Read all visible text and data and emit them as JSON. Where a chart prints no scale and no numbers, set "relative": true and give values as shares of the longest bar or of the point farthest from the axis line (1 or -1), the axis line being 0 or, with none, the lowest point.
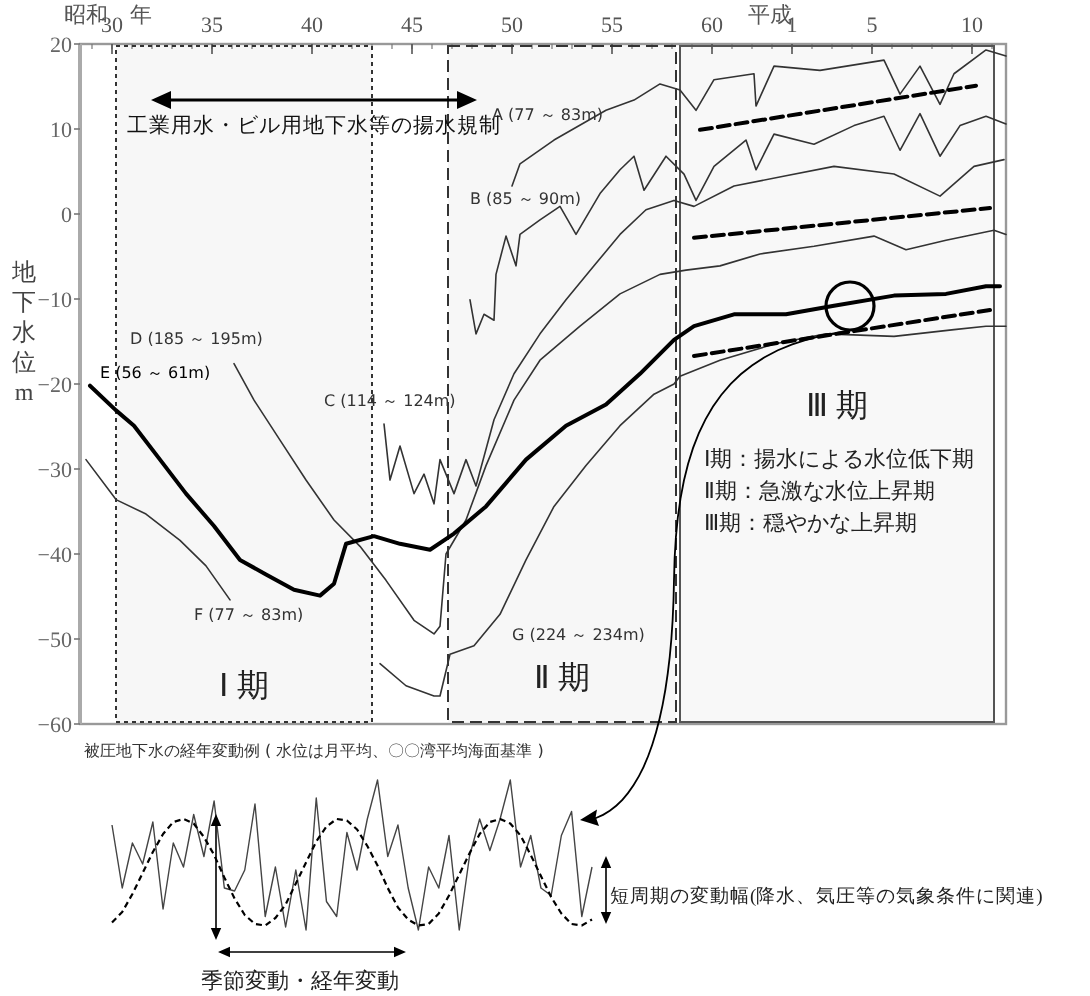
{
  "chart_data": [
    {
      "type": "line",
      "xlabel": "昭和　年",
      "x2label": "平成",
      "ylabel": "地下水位 m",
      "xlim": [
        28.4,
        74.7
      ],
      "xticks": [
        30,
        35,
        40,
        45,
        50,
        55,
        60
      ],
      "x2lim": [
        -34.6,
        11.7
      ],
      "x2ticks": [
        1,
        5,
        10
      ],
      "ylim": [
        -60,
        20
      ],
      "yticks": [
        -60,
        -50,
        -40,
        -30,
        -20,
        -10,
        0,
        10,
        20
      ],
      "series": [
        {
          "name": "A (77 ～ 83m)",
          "color": "#333333",
          "x": [
            50.0,
            50.4,
            52.1,
            54.7,
            56.1,
            57.4,
            58.4,
            59.2,
            60.1,
            62.1,
            62.2,
            63.1,
            65.4,
            68.6,
            69.4,
            70.4,
            71.4,
            72.1,
            73.7,
            74.7
          ],
          "values": [
            3.3,
            5.9,
            8.7,
            12.2,
            13.4,
            15.3,
            14.6,
            12.2,
            15.8,
            16.5,
            12.7,
            17.4,
            16.9,
            18.1,
            14.1,
            17.4,
            12.9,
            16.5,
            19.3,
            18.6
          ]
        },
        {
          "name": "B (85 ～ 90m)",
          "color": "#333333",
          "x": [
            47.9,
            48.2,
            48.6,
            49.1,
            49.2,
            49.7,
            50.2,
            50.4,
            51.4,
            52.4,
            53.2,
            54.4,
            55.4,
            56.1,
            56.6,
            57.7,
            58.6,
            59.2,
            60.1,
            61.7,
            62.2,
            63.1,
            65.1,
            67.1,
            68.6,
            69.4,
            70.4,
            71.4,
            72.4,
            73.7,
            74.7
          ],
          "values": [
            -10.1,
            -14.1,
            -11.8,
            -12.5,
            -7.1,
            -2.6,
            -6.1,
            -2.4,
            -0.7,
            0.9,
            -2.4,
            2.4,
            5.2,
            6.8,
            2.8,
            6.8,
            4.7,
            1.6,
            5.6,
            8.7,
            5.2,
            9.4,
            8.2,
            10.4,
            11.5,
            7.5,
            11.8,
            6.8,
            10.4,
            11.5,
            10.6
          ]
        },
        {
          "name": "C (114 ～ 124m)",
          "color": "#333333",
          "x": [
            43.6,
            43.9,
            44.4,
            45.1,
            45.6,
            46.1,
            46.4,
            47.1,
            47.7,
            48.2,
            49.1,
            50.1,
            51.4,
            52.7,
            54.1,
            55.4,
            56.7,
            58.1,
            59.1,
            61.1,
            63.7,
            66.1,
            69.1,
            71.4,
            73.1,
            74.6
          ],
          "values": [
            -24.7,
            -31.3,
            -27.3,
            -32.9,
            -30.6,
            -34.1,
            -28.9,
            -32.9,
            -28.9,
            -32.0,
            -24.2,
            -18.8,
            -14.1,
            -10.1,
            -6.1,
            -2.4,
            0.5,
            1.6,
            0.9,
            3.3,
            4.5,
            5.6,
            4.7,
            2.1,
            5.6,
            6.4
          ]
        },
        {
          "name": "D (185 ～ 195m)",
          "color": "#333333",
          "x": [
            36.1,
            37.1,
            38.4,
            39.7,
            41.1,
            42.4,
            43.7,
            45.1,
            46.1,
            46.4,
            46.7,
            47.7,
            48.7,
            50.1,
            51.4,
            53.4,
            55.4,
            57.4,
            58.7,
            60.4,
            62.4,
            65.1,
            68.1,
            69.7,
            71.7,
            74.1,
            74.7
          ],
          "values": [
            -17.6,
            -21.9,
            -26.6,
            -31.3,
            -36.0,
            -39.1,
            -43.1,
            -47.8,
            -49.4,
            -48.5,
            -40.0,
            -36.0,
            -29.6,
            -21.9,
            -17.2,
            -13.2,
            -9.4,
            -7.1,
            -6.6,
            -6.1,
            -4.7,
            -3.8,
            -2.6,
            -4.2,
            -3.1,
            -1.9,
            -2.4
          ]
        },
        {
          "name": "E (56 ～ 61m)",
          "color": "#000000",
          "x": [
            28.9,
            30.2,
            31.1,
            32.4,
            33.7,
            35.1,
            36.4,
            37.7,
            39.1,
            40.4,
            41.1,
            41.7,
            43.1,
            44.4,
            45.9,
            47.1,
            48.7,
            50.7,
            52.7,
            54.7,
            56.4,
            58.1,
            59.1,
            61.1,
            63.7,
            66.1,
            69.1,
            71.7,
            73.7,
            74.4
          ],
          "values": [
            -20.2,
            -23.1,
            -24.9,
            -28.9,
            -32.9,
            -36.7,
            -40.7,
            -42.4,
            -44.2,
            -44.9,
            -43.5,
            -38.8,
            -37.9,
            -38.8,
            -39.5,
            -37.6,
            -34.4,
            -28.9,
            -24.9,
            -22.4,
            -18.8,
            -14.8,
            -13.2,
            -11.8,
            -11.8,
            -10.8,
            -9.6,
            -9.4,
            -8.5,
            -8.5
          ]
        },
        {
          "name": "F (77 ～ 83m)",
          "color": "#333333",
          "x": [
            28.7,
            30.2,
            31.7,
            33.4,
            34.7,
            35.9
          ],
          "values": [
            -28.9,
            -33.6,
            -35.3,
            -38.4,
            -41.4,
            -45.4
          ]
        },
        {
          "name": "G (224 ～ 234m)",
          "color": "#333333",
          "x": [
            43.4,
            44.7,
            46.1,
            46.4,
            46.9,
            48.1,
            49.4,
            50.7,
            52.1,
            53.7,
            55.4,
            57.1,
            58.1,
            58.4,
            60.4,
            63.1,
            65.7,
            69.1,
            72.1,
            73.7,
            74.7
          ],
          "values": [
            -52.9,
            -55.5,
            -56.7,
            -56.7,
            -51.8,
            -50.8,
            -47.1,
            -40.7,
            -34.4,
            -29.6,
            -24.9,
            -21.2,
            -20.0,
            -19.1,
            -17.2,
            -15.3,
            -14.1,
            -14.4,
            -13.6,
            -13.2,
            -13.2
          ]
        },
        {
          "type": "line",
          "line_style": "dashed",
          "color": "#000000",
          "x": [
            59.4,
            73.2
          ],
          "values": [
            9.9,
            15.1
          ]
        },
        {
          "type": "line",
          "line_style": "dashed",
          "color": "#000000",
          "x": [
            59.1,
            73.9
          ],
          "values": [
            -2.8,
            0.7
          ]
        },
        {
          "type": "line",
          "line_style": "dashed",
          "color": "#000000",
          "x": [
            59.1,
            73.9
          ],
          "values": [
            -16.7,
            -11.3
          ]
        }
      ],
      "bands": [
        {
          "axis": "x",
          "from": 30.2,
          "to": 43.0,
          "label": "Ⅰ 期",
          "color": "#333333"
        },
        {
          "axis": "x",
          "from": 46.8,
          "to": 58.2,
          "label": "Ⅱ 期",
          "color": "#333333"
        },
        {
          "axis": "x",
          "from": 58.4,
          "to": 74.1,
          "label": "Ⅲ 期",
          "color": "#555555"
        }
      ],
      "annotations": [
        "工業用水・ビル用地下水等の揚水規制",
        "被圧地下水の経年変動例 ( 水位は月平均、〇〇湾平均海面基準 )",
        "Ⅰ期：揚水による水位低下期",
        "Ⅱ期：急激な水位上昇期",
        "Ⅲ期：穏やかな上昇期"
      ]
    },
    {
      "type": "line",
      "relative": true,
      "categories": [
        null,
        null,
        null,
        null,
        null,
        null,
        null,
        null,
        null,
        null,
        null,
        null,
        null,
        null,
        null,
        null,
        null,
        null,
        null,
        null,
        null,
        null,
        null,
        null,
        null,
        null,
        null,
        null,
        null,
        null,
        null,
        null,
        null,
        null,
        null,
        null,
        null,
        null,
        null,
        null,
        null,
        null,
        null,
        null,
        null,
        null,
        null,
        null
      ],
      "series": [
        {
          "color": "#444444",
          "values": [
            0.7,
            0.28,
            0.58,
            0.44,
            0.72,
            0.14,
            0.58,
            0.42,
            0.77,
            0.49,
            0.86,
            0.28,
            0.26,
            0.4,
            0.84,
            0.09,
            0.42,
            0.02,
            0.4,
            0,
            0.88,
            0.19,
            0.09,
            0.65,
            0.4,
            0.74,
            1,
            0.49,
            0.7,
            0.28,
            0,
            0.42,
            0.28,
            0.63,
            0,
            0.49,
            0.74,
            0.53,
            0.74,
            1,
            0.42,
            0.63,
            0.28,
            0.23,
            0.63,
            0.79,
            0.09,
            0.42
          ]
        },
        {
          "color": "#000000",
          "line_style": "dashed",
          "values": [
            0.05,
            0.12,
            0.24,
            0.38,
            0.52,
            0.64,
            0.72,
            0.74,
            0.71,
            0.62,
            0.5,
            0.35,
            0.21,
            0.1,
            0.04,
            0.03,
            0.08,
            0.17,
            0.31,
            0.45,
            0.59,
            0.69,
            0.74,
            0.73,
            0.67,
            0.56,
            0.43,
            0.28,
            0.15,
            0.07,
            0.03,
            0.04,
            0.11,
            0.23,
            0.37,
            0.51,
            0.64,
            0.72,
            0.74,
            0.71,
            0.63,
            0.5,
            0.36,
            0.22,
            0.11,
            0.04,
            0.03,
            0.07
          ]
        }
      ],
      "annotations": [
        "短周期の変動幅(降水、気圧等の気象条件に関連)",
        "季節変動・経年変動"
      ]
    }
  ]
}
